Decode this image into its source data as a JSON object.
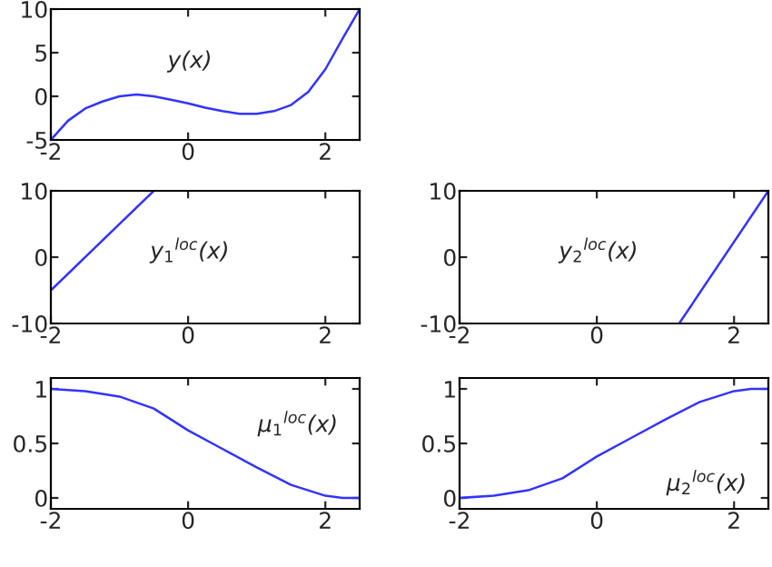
{
  "chart_data": [
    {
      "type": "line",
      "xlim": [
        -2,
        2.5
      ],
      "xticks": [
        -2,
        0,
        2
      ],
      "ylim": [
        -5,
        10
      ],
      "yticks": [
        -5,
        0,
        5,
        10
      ],
      "annotations": [
        "y(x)"
      ],
      "series": [
        {
          "color": "#3333ff",
          "x": [
            -2,
            -1.75,
            -1.5,
            -1.25,
            -1,
            -0.75,
            -0.5,
            -0.25,
            0,
            0.25,
            0.5,
            0.75,
            1,
            1.25,
            1.5,
            1.75,
            2,
            2.25,
            2.5
          ],
          "values": [
            -5,
            -2.8,
            -1.4,
            -0.6,
            0,
            0.2,
            0,
            -0.4,
            -0.8,
            -1.3,
            -1.7,
            -2,
            -2,
            -1.7,
            -1,
            0.5,
            3.1,
            6.6,
            10
          ]
        }
      ]
    },
    {
      "type": "line",
      "xlim": [
        -2,
        2.5
      ],
      "xticks": [
        -2,
        0,
        2
      ],
      "ylim": [
        -10,
        10
      ],
      "yticks": [
        -10,
        0,
        10
      ],
      "annotations": [
        "y$_{1}$$^{loc}$(x)"
      ],
      "series": [
        {
          "color": "#3333ff",
          "x": [
            -2,
            -0.5
          ],
          "values": [
            -5,
            10
          ]
        }
      ]
    },
    {
      "type": "line",
      "xlim": [
        -2,
        2.5
      ],
      "xticks": [
        -2,
        0,
        2
      ],
      "ylim": [
        -10,
        10
      ],
      "yticks": [
        -10,
        0,
        10
      ],
      "annotations": [
        "y$_{2}$$^{loc}$(x)"
      ],
      "series": [
        {
          "color": "#3333ff",
          "x": [
            1.2,
            2.5
          ],
          "values": [
            -10,
            10
          ]
        }
      ]
    },
    {
      "type": "line",
      "xlim": [
        -2,
        2.5
      ],
      "xticks": [
        -2,
        0,
        2
      ],
      "ylim": [
        -0.1,
        1.1
      ],
      "yticks": [
        0,
        0.5,
        1
      ],
      "annotations": [
        "μ$_{1}$$^{loc}$(x)"
      ],
      "series": [
        {
          "color": "#3333ff",
          "x": [
            -2,
            -1.5,
            -1,
            -0.5,
            0,
            0.5,
            1,
            1.5,
            2,
            2.25,
            2.5
          ],
          "values": [
            1,
            0.98,
            0.93,
            0.82,
            0.62,
            0.45,
            0.28,
            0.12,
            0.02,
            0,
            0
          ]
        }
      ]
    },
    {
      "type": "line",
      "xlim": [
        -2,
        2.5
      ],
      "xticks": [
        -2,
        0,
        2
      ],
      "ylim": [
        -0.1,
        1.1
      ],
      "yticks": [
        0,
        0.5,
        1
      ],
      "annotations": [
        "μ$_{2}$$^{loc}$(x)"
      ],
      "series": [
        {
          "color": "#3333ff",
          "x": [
            -2,
            -1.5,
            -1,
            -0.5,
            0,
            0.5,
            1,
            1.5,
            2,
            2.25,
            2.5
          ],
          "values": [
            0,
            0.02,
            0.07,
            0.18,
            0.38,
            0.55,
            0.72,
            0.88,
            0.98,
            1,
            1
          ]
        }
      ]
    }
  ]
}
